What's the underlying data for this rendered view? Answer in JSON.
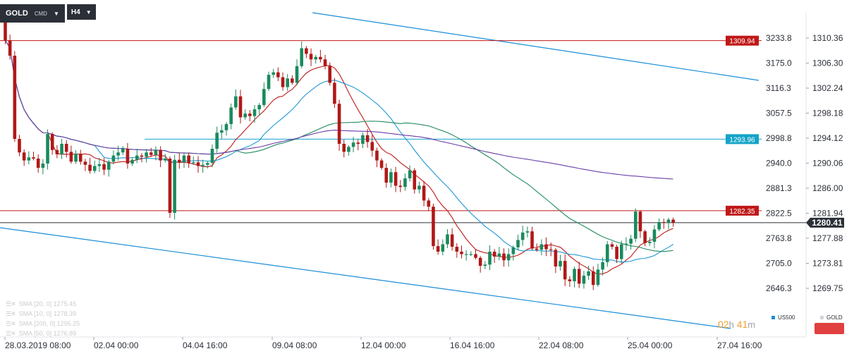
{
  "header": {
    "symbol": "GOLD",
    "symbol_sub": "CMD",
    "timeframe": "H4"
  },
  "timer": {
    "hours": "02",
    "h_unit": "h",
    "minutes": "41",
    "m_unit": "m"
  },
  "legend": {
    "us500": "US500",
    "gold": "GOLD"
  },
  "sma_legend": [
    "SMA [20, 0]  1275.45",
    "SMA [10, 0]  1278.39",
    "SMA [200, 0]  1295.25",
    "SMA [50, 0]  1276.89"
  ],
  "colors": {
    "bull": "#1a8a5e",
    "bear": "#b01818",
    "sma10": "#c01818",
    "sma20": "#1f97d4",
    "sma50": "#1f8a5c",
    "sma200": "#6a3ea8",
    "channel": "#1a8ed8",
    "level": "#c01818",
    "level_blue": "#14a3c7",
    "current": "#2b3038"
  },
  "chart_data": {
    "type": "candlestick",
    "instrument": "GOLD",
    "timeframe": "H4",
    "right_axis": {
      "ticks": [
        1310.36,
        1306.3,
        1302.24,
        1298.18,
        1294.12,
        1290.06,
        1286.0,
        1281.94,
        1277.88,
        1273.81,
        1269.75
      ],
      "labels": [
        "1310.36",
        "1306.30",
        "1302.24",
        "1298.18",
        "1294.12",
        "1290.06",
        "1286.00",
        "1281.94",
        "1277.88",
        "1273.81",
        "1269.75"
      ]
    },
    "left_axis": {
      "labels": [
        "3233.8",
        "3175.0",
        "3116.3",
        "3057.5",
        "2998.8",
        "2940.0",
        "2881.3",
        "2822.5",
        "2763.8",
        "2705.0",
        "2646.3"
      ]
    },
    "x_ticks": [
      "28.03.2019  08:00",
      "02.04  00:00",
      "04.04  16:00",
      "09.04  08:00",
      "12.04  00:00",
      "16.04  16:00",
      "22.04  08:00",
      "25.04  00:00",
      "27.04  16:00"
    ],
    "levels": [
      {
        "value": 1309.94,
        "label": "1309.94",
        "style": "red"
      },
      {
        "value": 1293.96,
        "label": "1293.96",
        "style": "blue"
      },
      {
        "value": 1282.35,
        "label": "1282.35",
        "style": "red"
      }
    ],
    "current_price": {
      "value": 1280.41,
      "label": "1280.41"
    },
    "closes": [
      1310.0,
      1307.5,
      1294.0,
      1291.8,
      1290.5,
      1291.0,
      1290.8,
      1289.3,
      1290.0,
      1294.8,
      1292.2,
      1291.5,
      1293.2,
      1291.9,
      1290.3,
      1291.6,
      1290.3,
      1289.8,
      1288.8,
      1289.6,
      1289.9,
      1289.0,
      1290.3,
      1291.3,
      1291.8,
      1292.4,
      1290.0,
      1290.6,
      1291.3,
      1291.1,
      1291.8,
      1291.4,
      1292.2,
      1290.5,
      1290.8,
      1282.0,
      1290.6,
      1290.2,
      1291.3,
      1290.1,
      1290.2,
      1289.6,
      1289.8,
      1290.1,
      1292.4,
      1295.0,
      1295.4,
      1296.4,
      1299.1,
      1300.9,
      1297.5,
      1298.1,
      1297.7,
      1298.8,
      1299.5,
      1302.1,
      1304.4,
      1304.8,
      1304.0,
      1302.4,
      1303.8,
      1303.1,
      1305.8,
      1308.7,
      1307.8,
      1306.9,
      1307.3,
      1306.9,
      1305.8,
      1303.1,
      1299.7,
      1293.2,
      1291.9,
      1292.7,
      1293.4,
      1293.2,
      1294.6,
      1293.5,
      1292.1,
      1290.5,
      1289.3,
      1286.9,
      1288.6,
      1286.4,
      1286.2,
      1287.6,
      1288.9,
      1285.8,
      1286.4,
      1284.0,
      1283.0,
      1276.6,
      1275.7,
      1276.9,
      1278.5,
      1276.5,
      1275.7,
      1275.3,
      1275.3,
      1275.3,
      1274.7,
      1273.4,
      1273.6,
      1275.7,
      1274.9,
      1275.4,
      1274.3,
      1275.3,
      1276.4,
      1277.6,
      1278.8,
      1279.0,
      1276.2,
      1276.0,
      1276.9,
      1276.1,
      1276.0,
      1273.3,
      1274.2,
      1271.2,
      1270.9,
      1272.9,
      1270.5,
      1271.8,
      1272.5,
      1270.3,
      1272.8,
      1274.0,
      1276.9,
      1276.5,
      1274.5,
      1276.9,
      1277.0,
      1277.8,
      1282.2,
      1279.0,
      1277.1,
      1277.3,
      1279.3,
      1280.5,
      1280.4,
      1280.9,
      1280.4
    ]
  }
}
